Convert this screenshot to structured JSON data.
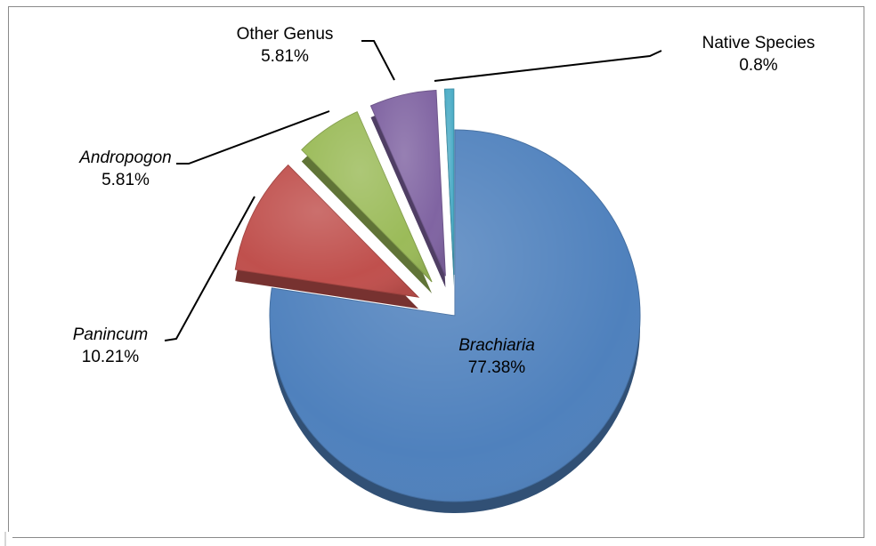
{
  "chart_data": {
    "type": "pie",
    "title": "",
    "legend": "none",
    "slices": [
      {
        "name": "Brachiaria",
        "value": 77.38,
        "label": "77.38%",
        "color": "#4f81bd",
        "italic": true
      },
      {
        "name": "Panincum",
        "value": 10.21,
        "label": "10.21%",
        "color": "#c0504d",
        "italic": true
      },
      {
        "name": "Andropogon",
        "value": 5.81,
        "label": "5.81%",
        "color": "#9bbb59",
        "italic": true
      },
      {
        "name": "Other Genus",
        "value": 5.81,
        "label": "5.81%",
        "color": "#8064a2",
        "italic": false
      },
      {
        "name": "Native Species",
        "value": 0.8,
        "label": "0.8%",
        "color": "#4bacc6",
        "italic": false
      }
    ]
  }
}
